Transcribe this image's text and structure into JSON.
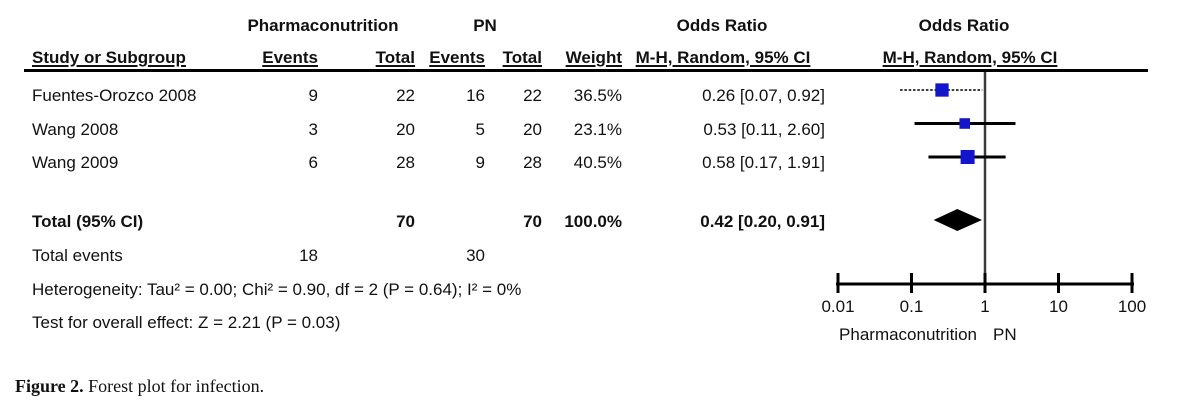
{
  "table": {
    "group_headers": {
      "treatment": "Pharmaconutrition",
      "control": "PN",
      "or_text_col": "Odds Ratio",
      "or_plot_col": "Odds Ratio"
    },
    "column_headers": {
      "study": "Study or Subgroup",
      "events1": "Events",
      "total1": "Total",
      "events2": "Events",
      "total2": "Total",
      "weight": "Weight",
      "mh_text": "M-H, Random, 95% CI",
      "mh_plot": "M-H, Random, 95% CI"
    },
    "rows": [
      {
        "study": "Fuentes-Orozco 2008",
        "events1": "9",
        "total1": "22",
        "events2": "16",
        "total2": "22",
        "weight": "36.5%",
        "or_ci": "0.26 [0.07, 0.92]"
      },
      {
        "study": "Wang 2008",
        "events1": "3",
        "total1": "20",
        "events2": "5",
        "total2": "20",
        "weight": "23.1%",
        "or_ci": "0.53 [0.11, 2.60]"
      },
      {
        "study": "Wang 2009",
        "events1": "6",
        "total1": "28",
        "events2": "9",
        "total2": "28",
        "weight": "40.5%",
        "or_ci": "0.58 [0.17, 1.91]"
      }
    ],
    "total_row": {
      "label": "Total (95% CI)",
      "total1": "70",
      "total2": "70",
      "weight": "100.0%",
      "or_ci": "0.42 [0.20, 0.91]"
    },
    "total_events_row": {
      "label": "Total events",
      "events1": "18",
      "events2": "30"
    },
    "heterogeneity": "Heterogeneity: Tau² = 0.00; Chi² = 0.90, df = 2 (P = 0.64); I² = 0%",
    "overall_effect": "Test for overall effect: Z = 2.21 (P = 0.03)"
  },
  "chart_data": {
    "type": "forest_plot",
    "effect_measure": "Odds Ratio, M-H, Random, 95% CI",
    "x_scale": "log10",
    "x_range": [
      0.01,
      100
    ],
    "null_line": 1,
    "axis_ticks": [
      0.01,
      0.1,
      1,
      10,
      100
    ],
    "axis_tick_labels": [
      "0.01",
      "0.1",
      "1",
      "10",
      "100"
    ],
    "favours_left_label": "Pharmaconutrition",
    "favours_right_label": "PN",
    "studies": [
      {
        "name": "Fuentes-Orozco 2008",
        "or": 0.26,
        "ci_low": 0.07,
        "ci_high": 0.92,
        "weight_pct": 36.5
      },
      {
        "name": "Wang 2008",
        "or": 0.53,
        "ci_low": 0.11,
        "ci_high": 2.6,
        "weight_pct": 23.1
      },
      {
        "name": "Wang 2009",
        "or": 0.58,
        "ci_low": 0.17,
        "ci_high": 1.91,
        "weight_pct": 40.5
      }
    ],
    "total": {
      "or": 0.42,
      "ci_low": 0.2,
      "ci_high": 0.91
    },
    "marker_color": "#1414cc",
    "diamond_color": "#000000",
    "axis_color": "#000000"
  },
  "caption": {
    "label": "Figure 2.",
    "text": " Forest plot for infection."
  }
}
